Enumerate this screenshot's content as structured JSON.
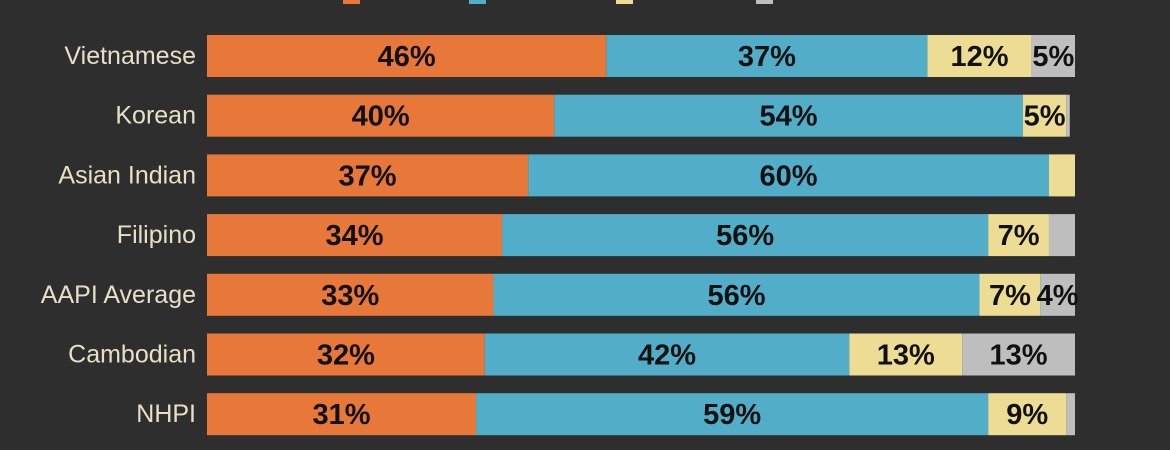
{
  "chart_data": {
    "type": "bar",
    "orientation": "horizontal",
    "stacked": true,
    "categories": [
      "Vietnamese",
      "Korean",
      "Asian Indian",
      "Filipino",
      "AAPI Average",
      "Cambodian",
      "NHPI"
    ],
    "series": [
      {
        "color": "#e8773a",
        "values": [
          46,
          40,
          37,
          34,
          33,
          32,
          31
        ],
        "labels": [
          "46%",
          "40%",
          "37%",
          "34%",
          "33%",
          "32%",
          "31%"
        ]
      },
      {
        "color": "#52aec8",
        "values": [
          37,
          54,
          60,
          56,
          56,
          42,
          59
        ],
        "labels": [
          "37%",
          "54%",
          "60%",
          "56%",
          "56%",
          "42%",
          "59%"
        ]
      },
      {
        "color": "#ecdc94",
        "values": [
          12,
          5,
          3,
          7,
          7,
          13,
          9
        ],
        "labels": [
          "12%",
          "5%",
          "",
          "7%",
          "7%",
          "13%",
          "9%"
        ]
      },
      {
        "color": "#bebebe",
        "values": [
          5,
          0.4,
          0,
          3.5,
          4,
          13,
          2
        ],
        "labels": [
          "5%",
          "",
          "",
          "",
          "4%",
          "13%",
          ""
        ]
      }
    ],
    "xlim": [
      0,
      100
    ],
    "legend": "top-center",
    "grid": false
  }
}
